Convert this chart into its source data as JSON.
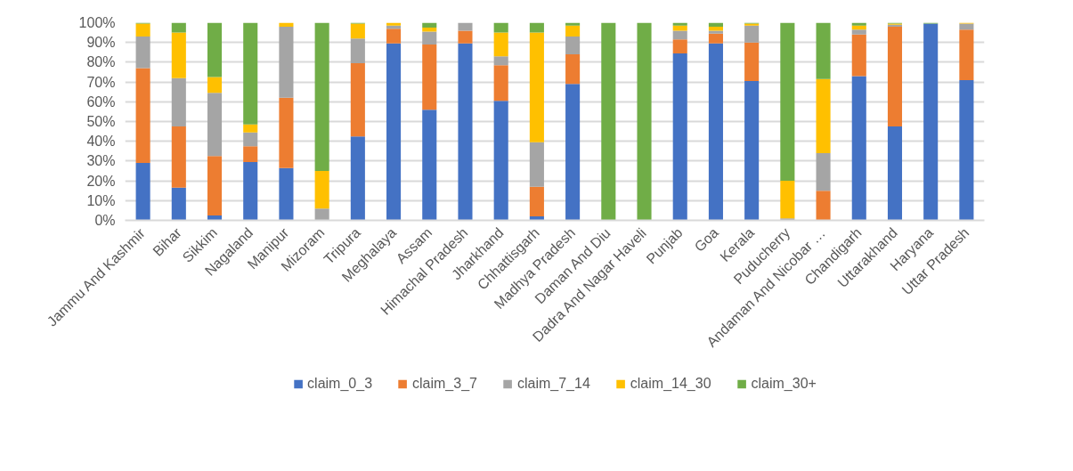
{
  "chart_data": {
    "type": "bar",
    "stacked": true,
    "categories": [
      "Jammu And Kashmir",
      "Bihar",
      "Sikkim",
      "Nagaland",
      "Manipur",
      "Mizoram",
      "Tripura",
      "Meghalaya",
      "Assam",
      "Himachal Pradesh",
      "Jharkhand",
      "Chhattisgarh",
      "Madhya Pradesh",
      "Daman And Diu",
      "Dadra And Nagar Haveli",
      "Punjab",
      "Goa",
      "Kerala",
      "Puducherry",
      "Andaman And Nicobar …",
      "Chandigarh",
      "Uttarakhand",
      "Haryana",
      "Uttar Pradesh"
    ],
    "series": [
      {
        "name": "claim_0_3",
        "color": "#4472c4",
        "values": [
          29,
          16.5,
          2.5,
          29.5,
          26.5,
          0,
          42.5,
          89.5,
          56,
          89.5,
          60.5,
          2,
          69,
          0,
          0,
          84.5,
          89.5,
          70.5,
          0,
          0,
          73,
          47.5,
          99.5,
          71
        ]
      },
      {
        "name": "claim_3_7",
        "color": "#ed7d31",
        "values": [
          48,
          31,
          30,
          8,
          35.5,
          0,
          37,
          7.5,
          33,
          6.5,
          18,
          15,
          15,
          0,
          0,
          7,
          5,
          19.5,
          0,
          15,
          21,
          50.5,
          0,
          25.5
        ]
      },
      {
        "name": "claim_7_14",
        "color": "#a5a5a5",
        "values": [
          16,
          24.5,
          32,
          7,
          36,
          6,
          12.5,
          1.5,
          6.5,
          4,
          4.5,
          22.5,
          9,
          0,
          0,
          4.5,
          1.5,
          8.5,
          1,
          19,
          2.5,
          1,
          0,
          3
        ]
      },
      {
        "name": "claim_14_30",
        "color": "#ffc000",
        "values": [
          6.5,
          23,
          8,
          4,
          2,
          19,
          7.5,
          1.5,
          2,
          0,
          12,
          55.5,
          5.5,
          0,
          0,
          2.5,
          2,
          1,
          19,
          37.5,
          2,
          0.5,
          0,
          0.5
        ]
      },
      {
        "name": "claim_30+",
        "color": "#70ad47",
        "values": [
          0.5,
          5,
          27.5,
          51.5,
          0,
          75,
          0.5,
          0,
          2.5,
          0,
          5,
          5,
          1.5,
          100,
          100,
          1.5,
          2,
          0.5,
          80,
          28.5,
          1.5,
          0.5,
          0.5,
          0
        ]
      }
    ],
    "ylim": [
      0,
      100
    ],
    "yticks": [
      {
        "value": 0,
        "label": "0%"
      },
      {
        "value": 10,
        "label": "10%"
      },
      {
        "value": 20,
        "label": "20%"
      },
      {
        "value": 30,
        "label": "30%"
      },
      {
        "value": 40,
        "label": "40%"
      },
      {
        "value": 50,
        "label": "50%"
      },
      {
        "value": 60,
        "label": "60%"
      },
      {
        "value": 70,
        "label": "70%"
      },
      {
        "value": 80,
        "label": "80%"
      },
      {
        "value": 90,
        "label": "90%"
      },
      {
        "value": 100,
        "label": "100%"
      }
    ],
    "grid": "y",
    "legend": "bottom"
  }
}
